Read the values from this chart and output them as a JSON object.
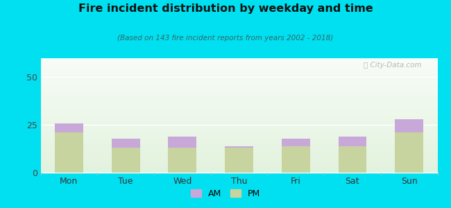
{
  "categories": [
    "Mon",
    "Tue",
    "Wed",
    "Thu",
    "Fri",
    "Sat",
    "Sun"
  ],
  "pm_values": [
    21,
    13,
    13,
    13,
    14,
    14,
    21
  ],
  "am_values": [
    5,
    5,
    6,
    1,
    4,
    5,
    7
  ],
  "am_color": "#c8a8d8",
  "pm_color": "#c8d4a0",
  "title": "Fire incident distribution by weekday and time",
  "subtitle": "(Based on 143 fire incident reports from years 2002 - 2018)",
  "ylim": [
    0,
    60
  ],
  "yticks": [
    0,
    25,
    50
  ],
  "background_outer": "#00e0f0",
  "bar_width": 0.5,
  "watermark": "Ⓢ City-Data.com"
}
